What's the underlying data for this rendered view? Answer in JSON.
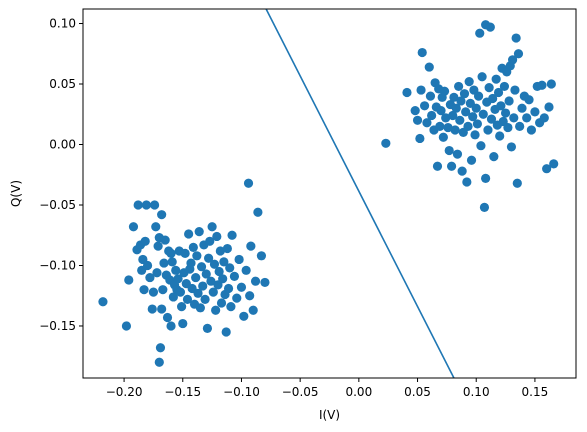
{
  "chart_data": {
    "type": "scatter",
    "title": "",
    "xlabel": "I(V)",
    "ylabel": "Q(V)",
    "xlim": [
      -0.235,
      0.185
    ],
    "ylim": [
      -0.193,
      0.112
    ],
    "xticks": [
      -0.2,
      -0.15,
      -0.1,
      -0.05,
      0.0,
      0.05,
      0.1,
      0.15
    ],
    "xtick_labels": [
      "−0.20",
      "−0.15",
      "−0.10",
      "−0.05",
      "0.00",
      "0.05",
      "0.10",
      "0.15"
    ],
    "yticks": [
      -0.15,
      -0.1,
      -0.05,
      0.0,
      0.05,
      0.1
    ],
    "ytick_labels": [
      "−0.15",
      "−0.10",
      "−0.05",
      "0.00",
      "0.05",
      "0.10"
    ],
    "grid": false,
    "marker_color": "#1f77b4",
    "line_color": "#1f77b4",
    "decision_line": {
      "x": [
        -0.079,
        0.081
      ],
      "y": [
        0.112,
        -0.193
      ]
    },
    "series": [
      {
        "points": [
          [
            -0.218,
            -0.13
          ],
          [
            -0.198,
            -0.15
          ],
          [
            -0.196,
            -0.112
          ],
          [
            -0.192,
            -0.068
          ],
          [
            -0.189,
            -0.087
          ],
          [
            -0.188,
            -0.05
          ],
          [
            -0.186,
            -0.083
          ],
          [
            -0.185,
            -0.104
          ],
          [
            -0.184,
            -0.095
          ],
          [
            -0.183,
            -0.12
          ],
          [
            -0.182,
            -0.08
          ],
          [
            -0.181,
            -0.05
          ],
          [
            -0.18,
            -0.1
          ],
          [
            -0.178,
            -0.11
          ],
          [
            -0.176,
            -0.136
          ],
          [
            -0.175,
            -0.122
          ],
          [
            -0.174,
            -0.05
          ],
          [
            -0.173,
            -0.068
          ],
          [
            -0.172,
            -0.106
          ],
          [
            -0.171,
            -0.084
          ],
          [
            -0.17,
            -0.077
          ],
          [
            -0.169,
            -0.168
          ],
          [
            -0.168,
            -0.136
          ],
          [
            -0.167,
            -0.12
          ],
          [
            -0.166,
            -0.098
          ],
          [
            -0.165,
            -0.079
          ],
          [
            -0.164,
            -0.108
          ],
          [
            -0.163,
            -0.143
          ],
          [
            -0.162,
            -0.088
          ],
          [
            -0.161,
            -0.112
          ],
          [
            -0.16,
            -0.15
          ],
          [
            -0.159,
            -0.097
          ],
          [
            -0.158,
            -0.126
          ],
          [
            -0.157,
            -0.116
          ],
          [
            -0.156,
            -0.104
          ],
          [
            -0.155,
            -0.12
          ],
          [
            -0.154,
            -0.111
          ],
          [
            -0.153,
            -0.088
          ],
          [
            -0.152,
            -0.122
          ],
          [
            -0.151,
            -0.134
          ],
          [
            -0.15,
            -0.148
          ],
          [
            -0.149,
            -0.106
          ],
          [
            -0.148,
            -0.09
          ],
          [
            -0.147,
            -0.115
          ],
          [
            -0.146,
            -0.128
          ],
          [
            -0.145,
            -0.074
          ],
          [
            -0.144,
            -0.103
          ],
          [
            -0.143,
            -0.098
          ],
          [
            -0.142,
            -0.119
          ],
          [
            -0.141,
            -0.085
          ],
          [
            -0.14,
            -0.132
          ],
          [
            -0.139,
            -0.11
          ],
          [
            -0.138,
            -0.092
          ],
          [
            -0.137,
            -0.123
          ],
          [
            -0.136,
            -0.072
          ],
          [
            -0.135,
            -0.135
          ],
          [
            -0.134,
            -0.101
          ],
          [
            -0.133,
            -0.117
          ],
          [
            -0.132,
            -0.083
          ],
          [
            -0.131,
            -0.128
          ],
          [
            -0.13,
            -0.107
          ],
          [
            -0.129,
            -0.152
          ],
          [
            -0.128,
            -0.094
          ],
          [
            -0.127,
            -0.08
          ],
          [
            -0.126,
            -0.113
          ],
          [
            -0.125,
            -0.068
          ],
          [
            -0.124,
            -0.122
          ],
          [
            -0.123,
            -0.099
          ],
          [
            -0.122,
            -0.137
          ],
          [
            -0.121,
            -0.076
          ],
          [
            -0.12,
            -0.116
          ],
          [
            -0.119,
            -0.105
          ],
          [
            -0.118,
            -0.088
          ],
          [
            -0.117,
            -0.131
          ],
          [
            -0.116,
            -0.111
          ],
          [
            -0.115,
            -0.097
          ],
          [
            -0.114,
            -0.124
          ],
          [
            -0.113,
            -0.155
          ],
          [
            -0.112,
            -0.086
          ],
          [
            -0.111,
            -0.119
          ],
          [
            -0.11,
            -0.102
          ],
          [
            -0.109,
            -0.134
          ],
          [
            -0.108,
            -0.075
          ],
          [
            -0.106,
            -0.109
          ],
          [
            -0.104,
            -0.127
          ],
          [
            -0.102,
            -0.095
          ],
          [
            -0.1,
            -0.118
          ],
          [
            -0.098,
            -0.142
          ],
          [
            -0.096,
            -0.104
          ],
          [
            -0.094,
            -0.032
          ],
          [
            -0.093,
            -0.125
          ],
          [
            -0.092,
            -0.084
          ],
          [
            -0.09,
            -0.137
          ],
          [
            -0.088,
            -0.113
          ],
          [
            -0.086,
            -0.056
          ],
          [
            -0.083,
            -0.092
          ],
          [
            -0.08,
            -0.114
          ],
          [
            -0.17,
            -0.18
          ],
          [
            -0.168,
            -0.058
          ],
          [
            -0.16,
            -0.09
          ]
        ]
      },
      {
        "points": [
          [
            0.023,
            0.001
          ],
          [
            0.041,
            0.043
          ],
          [
            0.048,
            0.028
          ],
          [
            0.05,
            0.02
          ],
          [
            0.052,
            0.005
          ],
          [
            0.053,
            0.045
          ],
          [
            0.054,
            0.076
          ],
          [
            0.056,
            0.032
          ],
          [
            0.058,
            0.018
          ],
          [
            0.06,
            0.064
          ],
          [
            0.061,
            0.04
          ],
          [
            0.062,
            0.024
          ],
          [
            0.064,
            0.012
          ],
          [
            0.065,
            0.051
          ],
          [
            0.066,
            0.031
          ],
          [
            0.067,
            -0.018
          ],
          [
            0.068,
            0.046
          ],
          [
            0.069,
            0.015
          ],
          [
            0.07,
            0.028
          ],
          [
            0.071,
            0.039
          ],
          [
            0.072,
            0.006
          ],
          [
            0.073,
            0.044
          ],
          [
            0.074,
            0.022
          ],
          [
            0.076,
            0.014
          ],
          [
            0.077,
            -0.005
          ],
          [
            0.078,
            0.033
          ],
          [
            0.079,
            -0.018
          ],
          [
            0.08,
            0.024
          ],
          [
            0.081,
            0.039
          ],
          [
            0.082,
            0.012
          ],
          [
            0.083,
            0.03
          ],
          [
            0.084,
            -0.008
          ],
          [
            0.085,
            0.048
          ],
          [
            0.086,
            0.02
          ],
          [
            0.087,
            0.036
          ],
          [
            0.088,
            -0.022
          ],
          [
            0.089,
            0.01
          ],
          [
            0.09,
            0.042
          ],
          [
            0.091,
            0.027
          ],
          [
            0.092,
            -0.031
          ],
          [
            0.093,
            0.015
          ],
          [
            0.094,
            0.052
          ],
          [
            0.095,
            0.034
          ],
          [
            0.096,
            -0.013
          ],
          [
            0.097,
            0.023
          ],
          [
            0.098,
            0.045
          ],
          [
            0.099,
            0.008
          ],
          [
            0.1,
            0.03
          ],
          [
            0.101,
            0.017
          ],
          [
            0.102,
            0.04
          ],
          [
            0.103,
            0.092
          ],
          [
            0.104,
            -0.001
          ],
          [
            0.105,
            0.056
          ],
          [
            0.106,
            0.025
          ],
          [
            0.107,
            -0.052
          ],
          [
            0.108,
            0.099
          ],
          [
            0.109,
            0.035
          ],
          [
            0.11,
            0.012
          ],
          [
            0.111,
            0.047
          ],
          [
            0.112,
            0.097
          ],
          [
            0.113,
            0.021
          ],
          [
            0.114,
            0.038
          ],
          [
            0.115,
            -0.01
          ],
          [
            0.116,
            0.029
          ],
          [
            0.117,
            0.054
          ],
          [
            0.118,
            0.016
          ],
          [
            0.119,
            0.043
          ],
          [
            0.12,
            0.007
          ],
          [
            0.121,
            0.032
          ],
          [
            0.122,
            0.063
          ],
          [
            0.123,
            0.019
          ],
          [
            0.124,
            0.048
          ],
          [
            0.125,
            0.026
          ],
          [
            0.126,
            0.06
          ],
          [
            0.127,
            0.014
          ],
          [
            0.128,
            0.036
          ],
          [
            0.129,
            0.065
          ],
          [
            0.13,
            -0.002
          ],
          [
            0.131,
            0.07
          ],
          [
            0.132,
            0.022
          ],
          [
            0.133,
            0.045
          ],
          [
            0.134,
            0.088
          ],
          [
            0.135,
            -0.032
          ],
          [
            0.136,
            0.075
          ],
          [
            0.137,
            0.015
          ],
          [
            0.139,
            0.03
          ],
          [
            0.141,
            0.04
          ],
          [
            0.143,
            0.022
          ],
          [
            0.145,
            0.037
          ],
          [
            0.147,
            0.012
          ],
          [
            0.15,
            0.027
          ],
          [
            0.152,
            0.048
          ],
          [
            0.154,
            0.018
          ],
          [
            0.156,
            0.049
          ],
          [
            0.158,
            0.022
          ],
          [
            0.16,
            -0.02
          ],
          [
            0.162,
            0.031
          ],
          [
            0.164,
            0.05
          ],
          [
            0.166,
            -0.016
          ],
          [
            0.108,
            -0.028
          ]
        ]
      }
    ]
  }
}
